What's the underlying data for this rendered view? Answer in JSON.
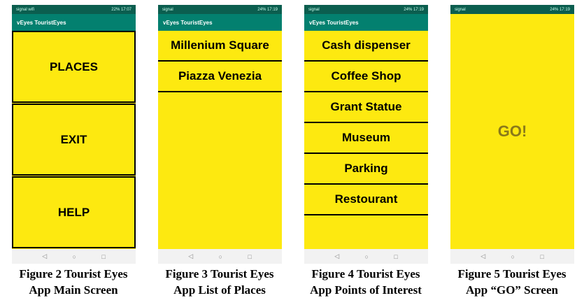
{
  "app_title": "vEyes TouristEyes",
  "phones": [
    {
      "status_left": "signal wifi",
      "status_right": "22% 17:07",
      "caption1": "Figure 2 Tourist Eyes",
      "caption2": "App Main Screen",
      "buttons": [
        "PLACES",
        "EXIT",
        "HELP"
      ]
    },
    {
      "status_left": "signal",
      "status_right": "24% 17:19",
      "caption1": "Figure 3 Tourist Eyes",
      "caption2": "App List of Places",
      "items": [
        "Millenium Square",
        "Piazza Venezia"
      ]
    },
    {
      "status_left": "signal",
      "status_right": "24% 17:19",
      "caption1": "Figure 4 Tourist Eyes",
      "caption2": "App Points of Interest",
      "items": [
        "Cash dispenser",
        "Coffee Shop",
        "Grant Statue",
        "Museum",
        "Parking",
        "Restourant"
      ]
    },
    {
      "status_left": "signal",
      "status_right": "24% 17:19",
      "caption1": "Figure 5 Tourist Eyes",
      "caption2": "App “GO” Screen",
      "go": "GO!"
    }
  ],
  "nav": {
    "back": "◁",
    "home": "○",
    "recent": "□"
  },
  "colors": {
    "toolbar": "#03806f",
    "status": "#0b5e4f",
    "background": "#fde910"
  }
}
